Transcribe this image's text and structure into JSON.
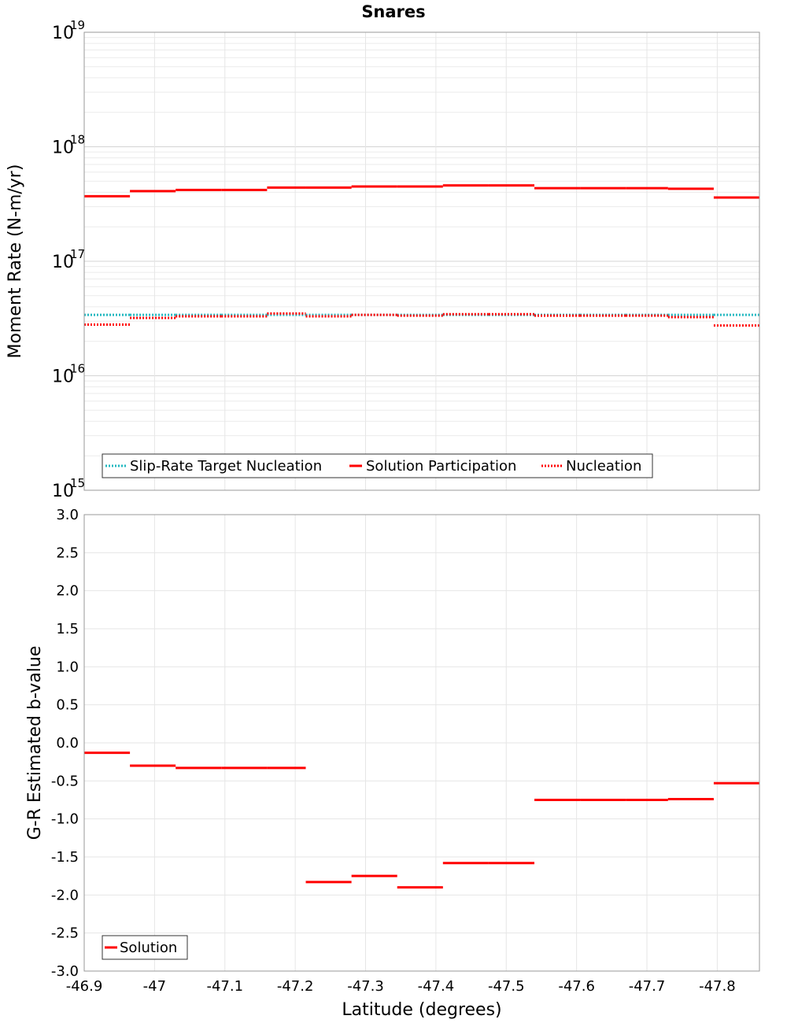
{
  "chart_data": [
    {
      "type": "line",
      "title": "Snares",
      "xlabel": "Latitude (degrees)",
      "ylabel": "Moment Rate (N-m/yr)",
      "yscale": "log",
      "ylim": [
        1000000000000000.0,
        1e+19
      ],
      "xlim": [
        -46.9,
        -47.86
      ],
      "x_reversed": true,
      "y_tick_exponents": [
        "15",
        "16",
        "17",
        "18",
        "19"
      ],
      "y_tick_base": "10",
      "grid": true,
      "legend_position": "bottom-left",
      "bins": [
        [
          -46.9,
          -46.965
        ],
        [
          -46.965,
          -47.03
        ],
        [
          -47.03,
          -47.095
        ],
        [
          -47.095,
          -47.16
        ],
        [
          -47.16,
          -47.215
        ],
        [
          -47.215,
          -47.28
        ],
        [
          -47.28,
          -47.345
        ],
        [
          -47.345,
          -47.41
        ],
        [
          -47.41,
          -47.475
        ],
        [
          -47.475,
          -47.54
        ],
        [
          -47.54,
          -47.605
        ],
        [
          -47.605,
          -47.67
        ],
        [
          -47.67,
          -47.73
        ],
        [
          -47.73,
          -47.795
        ],
        [
          -47.795,
          -47.86
        ]
      ],
      "series": [
        {
          "name": "Slip-Rate Target Nucleation",
          "style": "dotted",
          "color": "#22b8c0",
          "values": [
            3.4e+16,
            3.4e+16,
            3.4e+16,
            3.4e+16,
            3.4e+16,
            3.4e+16,
            3.4e+16,
            3.4e+16,
            3.4e+16,
            3.4e+16,
            3.4e+16,
            3.4e+16,
            3.4e+16,
            3.4e+16,
            3.4e+16
          ]
        },
        {
          "name": "Solution Participation",
          "style": "solid",
          "color": "#ff0000",
          "values": [
            3.7e+17,
            4.1e+17,
            4.2e+17,
            4.2e+17,
            4.4e+17,
            4.4e+17,
            4.5e+17,
            4.5e+17,
            4.6e+17,
            4.6e+17,
            4.35e+17,
            4.35e+17,
            4.35e+17,
            4.3e+17,
            3.6e+17
          ]
        },
        {
          "name": "Nucleation",
          "style": "dotted",
          "color": "#ff0000",
          "values": [
            2.8e+16,
            3.2e+16,
            3.3e+16,
            3.3e+16,
            3.5e+16,
            3.3e+16,
            3.4e+16,
            3.35e+16,
            3.45e+16,
            3.45e+16,
            3.35e+16,
            3.35e+16,
            3.35e+16,
            3.25e+16,
            2.75e+16
          ]
        }
      ]
    },
    {
      "type": "line",
      "title": "",
      "xlabel": "Latitude (degrees)",
      "ylabel": "G-R Estimated b-value",
      "ylim": [
        -3.0,
        3.0
      ],
      "xlim": [
        -46.9,
        -47.86
      ],
      "x_reversed": true,
      "y_ticks": [
        "3.0",
        "2.5",
        "2.0",
        "1.5",
        "1.0",
        "0.5",
        "0.0",
        "-0.5",
        "-1.0",
        "-1.5",
        "-2.0",
        "-2.5",
        "-3.0"
      ],
      "x_ticks": [
        "-46.9",
        "-47",
        "-47.1",
        "-47.2",
        "-47.3",
        "-47.4",
        "-47.5",
        "-47.6",
        "-47.7",
        "-47.8"
      ],
      "x_tick_values": [
        -46.9,
        -47.0,
        -47.1,
        -47.2,
        -47.3,
        -47.4,
        -47.5,
        -47.6,
        -47.7,
        -47.8
      ],
      "grid": true,
      "legend_position": "bottom-left",
      "series": [
        {
          "name": "Solution",
          "style": "solid",
          "color": "#ff0000",
          "values": [
            -0.13,
            -0.3,
            -0.33,
            -0.33,
            -0.33,
            -1.83,
            -1.75,
            -1.9,
            -1.58,
            -1.58,
            -0.75,
            -0.75,
            -0.75,
            -0.74,
            -0.53
          ]
        }
      ]
    }
  ]
}
